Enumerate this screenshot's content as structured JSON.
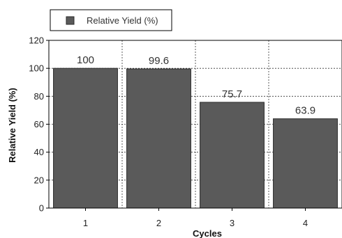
{
  "chart_data": {
    "type": "bar",
    "categories": [
      "1",
      "2",
      "3",
      "4"
    ],
    "series": [
      {
        "name": "Relative Yield (%)",
        "values": [
          100,
          99.6,
          75.7,
          63.9
        ]
      }
    ],
    "data_labels": [
      "100",
      "99.6",
      "75.7",
      "63.9"
    ],
    "xlabel": "Cycles",
    "ylabel": "Relative Yield (%)",
    "ylim": [
      0,
      120
    ],
    "yticks": [
      "0",
      "20",
      "40",
      "60",
      "80",
      "100",
      "120"
    ],
    "grid": true,
    "grid_style": "dotted",
    "legend_position": "top-left, above plot",
    "colors": {
      "bar": "#5a5a5a",
      "bar_edge": "#2b2b2b",
      "axis": "#000000",
      "grid": "#333333"
    }
  }
}
